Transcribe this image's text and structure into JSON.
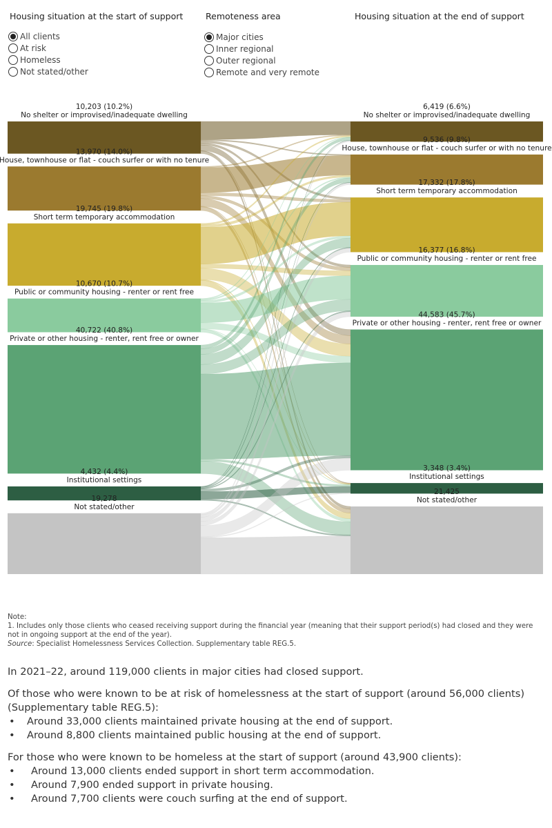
{
  "filters": {
    "housing_title": "Housing situation at the start of support",
    "housing_options": [
      "All clients",
      "At risk",
      "Homeless",
      "Not stated/other"
    ],
    "housing_selected": 0,
    "remoteness_title": "Remoteness area",
    "remoteness_options": [
      "Major cities",
      "Inner regional",
      "Outer regional",
      "Remote and very remote"
    ],
    "remoteness_selected": 0,
    "end_title": "Housing situation at the end of support"
  },
  "chart_data": {
    "type": "sankey",
    "categories": [
      "No shelter or improvised/inadequate dwelling",
      "House, townhouse or flat - couch surfer or with no tenure",
      "Short term temporary accommodation",
      "Public or community housing - renter or rent free",
      "Private or other housing - renter, rent free or owner",
      "Institutional settings",
      "Not stated/other"
    ],
    "colors": [
      "#6b5722",
      "#9b7a2f",
      "#c8ab2e",
      "#8acb9e",
      "#5ba374",
      "#2d5e43",
      "#c4c4c4"
    ],
    "start": {
      "values": [
        10203,
        13970,
        19745,
        10670,
        40722,
        4432,
        19278
      ],
      "labels": [
        "10,203 (10.2%)",
        "13,970 (14.0%)",
        "19,745 (19.8%)",
        "10,670 (10.7%)",
        "40,722 (40.8%)",
        "4,432 (4.4%)",
        "19,278"
      ]
    },
    "end": {
      "values": [
        6419,
        9536,
        17332,
        16377,
        44583,
        3348,
        21425
      ],
      "labels": [
        "6,419 (6.6%)",
        "9,536 (9.8%)",
        "17,332 (17.8%)",
        "16,377 (16.8%)",
        "44,583 (45.7%)",
        "3,348 (3.4%)",
        "21,425"
      ]
    }
  },
  "notes": {
    "heading": "Note:",
    "line1": "1.  Includes only those clients who ceased receiving support during the financial year (meaning that their support period(s) had closed and they were not in ongoing support at the end of the year).",
    "source_label": "Source",
    "source_text": ": Specialist Homelessness Services Collection. Supplementary table REG.5."
  },
  "summary": {
    "p1": "In 2021–22, around 119,000 clients in major cities had closed support.",
    "p2": "Of those who were known to be at risk of homelessness at the start of support (around 56,000 clients) (Supplementary table REG.5):",
    "risk_items": [
      "Around 33,000 clients maintained private housing at the end of support.",
      "Around 8,800 clients maintained public housing at the end of support."
    ],
    "p3": "For those who were known to be homeless at the start of support (around 43,900 clients):",
    "homeless_items": [
      "Around 13,000 clients ended support in short term accommodation.",
      "Around 7,900 ended support in private housing.",
      "Around 7,700 clients were couch surfing at the end of support."
    ]
  }
}
